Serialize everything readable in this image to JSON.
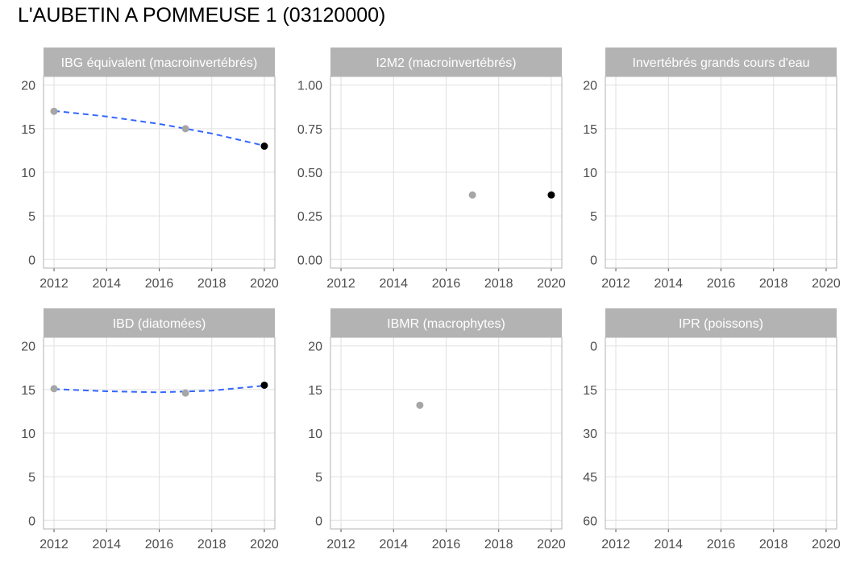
{
  "title": "L'AUBETIN A POMMEUSE 1 (03120000)",
  "colors": {
    "strip": "#b3b3b3",
    "grid": "#e0e0e0",
    "border": "#b3b3b3",
    "past_point": "#a6a6a6",
    "latest_point": "#000000",
    "trend": "#3366ff"
  },
  "chart_data": [
    {
      "type": "scatter",
      "title": "IBG équivalent (macroinvertébrés)",
      "x_ticks": [
        2012,
        2014,
        2016,
        2018,
        2020
      ],
      "y_ticks": [
        "20",
        "15",
        "10",
        "5",
        "0"
      ],
      "ylim": [
        0,
        20
      ],
      "y_reversed": false,
      "points": [
        {
          "x": 2012,
          "y": 17
        },
        {
          "x": 2017,
          "y": 15
        },
        {
          "x": 2020,
          "y": 13,
          "latest": true
        }
      ],
      "trend": [
        {
          "x": 2012,
          "y": 17.05
        },
        {
          "x": 2014,
          "y": 16.4
        },
        {
          "x": 2016,
          "y": 15.55
        },
        {
          "x": 2018,
          "y": 14.45
        },
        {
          "x": 2020,
          "y": 13.05
        }
      ]
    },
    {
      "type": "scatter",
      "title": "I2M2 (macroinvertébrés)",
      "x_ticks": [
        2012,
        2014,
        2016,
        2018,
        2020
      ],
      "y_ticks": [
        "1.00",
        "0.75",
        "0.50",
        "0.25",
        "0.00"
      ],
      "ylim": [
        0,
        1
      ],
      "y_reversed": false,
      "points": [
        {
          "x": 2017,
          "y": 0.37
        },
        {
          "x": 2020,
          "y": 0.37,
          "latest": true
        }
      ],
      "trend": []
    },
    {
      "type": "scatter",
      "title": "Invertébrés grands cours d'eau",
      "x_ticks": [
        2012,
        2014,
        2016,
        2018,
        2020
      ],
      "y_ticks": [
        "20",
        "15",
        "10",
        "5",
        "0"
      ],
      "ylim": [
        0,
        20
      ],
      "y_reversed": false,
      "points": [],
      "trend": []
    },
    {
      "type": "scatter",
      "title": "IBD (diatomées)",
      "x_ticks": [
        2012,
        2014,
        2016,
        2018,
        2020
      ],
      "y_ticks": [
        "20",
        "15",
        "10",
        "5",
        "0"
      ],
      "ylim": [
        0,
        20
      ],
      "y_reversed": false,
      "points": [
        {
          "x": 2012,
          "y": 15.1
        },
        {
          "x": 2017,
          "y": 14.6
        },
        {
          "x": 2020,
          "y": 15.5,
          "latest": true
        }
      ],
      "trend": [
        {
          "x": 2012,
          "y": 15.05
        },
        {
          "x": 2014,
          "y": 14.8
        },
        {
          "x": 2016,
          "y": 14.68
        },
        {
          "x": 2018,
          "y": 14.88
        },
        {
          "x": 2020,
          "y": 15.45
        }
      ]
    },
    {
      "type": "scatter",
      "title": "IBMR (macrophytes)",
      "x_ticks": [
        2012,
        2014,
        2016,
        2018,
        2020
      ],
      "y_ticks": [
        "20",
        "15",
        "10",
        "5",
        "0"
      ],
      "ylim": [
        0,
        20
      ],
      "y_reversed": false,
      "points": [
        {
          "x": 2015,
          "y": 13.2
        }
      ],
      "trend": []
    },
    {
      "type": "scatter",
      "title": "IPR (poissons)",
      "x_ticks": [
        2012,
        2014,
        2016,
        2018,
        2020
      ],
      "y_ticks": [
        "0",
        "15",
        "30",
        "45",
        "60"
      ],
      "ylim": [
        0,
        60
      ],
      "y_reversed": true,
      "points": [],
      "trend": []
    }
  ]
}
